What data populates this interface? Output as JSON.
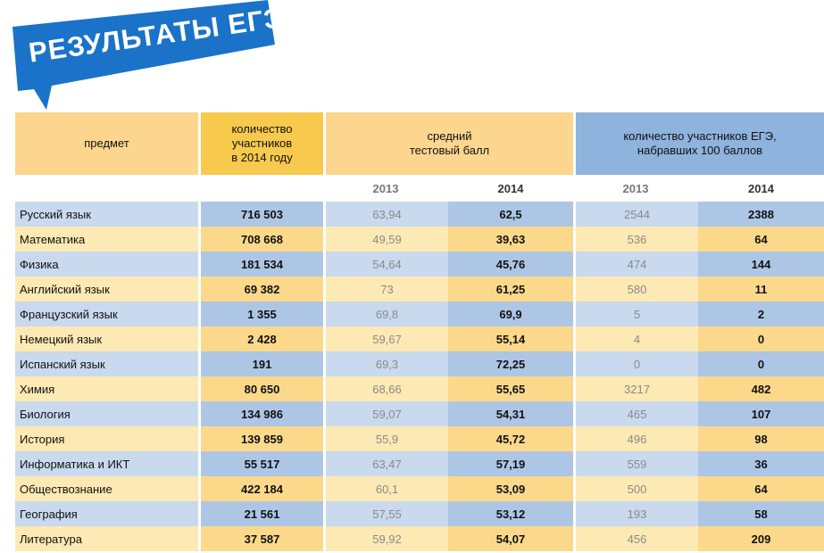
{
  "banner": {
    "title": "РЕЗУЛЬТАТЫ ЕГЭ",
    "color": "#1a73c9"
  },
  "header": {
    "subject": "предмет",
    "participants": [
      "количество",
      "участников",
      "в 2014 году"
    ],
    "avg_score": [
      "средний",
      "тестовый балл"
    ],
    "hundred": [
      "количество участников ЕГЭ,",
      "набравших 100 баллов"
    ]
  },
  "years": {
    "prev": "2013",
    "curr": "2014"
  },
  "rows": [
    {
      "subject": "Русский язык",
      "participants": "716 503",
      "avg_2013": "63,94",
      "avg_2014": "62,5",
      "h_2013": "2544",
      "h_2014": "2388"
    },
    {
      "subject": "Математика",
      "participants": "708 668",
      "avg_2013": "49,59",
      "avg_2014": "39,63",
      "h_2013": "536",
      "h_2014": "64"
    },
    {
      "subject": "Физика",
      "participants": "181 534",
      "avg_2013": "54,64",
      "avg_2014": "45,76",
      "h_2013": "474",
      "h_2014": "144"
    },
    {
      "subject": "Английский язык",
      "participants": "69 382",
      "avg_2013": "73",
      "avg_2014": "61,25",
      "h_2013": "580",
      "h_2014": "11"
    },
    {
      "subject": "Французский язык",
      "participants": "1 355",
      "avg_2013": "69,8",
      "avg_2014": "69,9",
      "h_2013": "5",
      "h_2014": "2"
    },
    {
      "subject": "Немецкий язык",
      "participants": "2 428",
      "avg_2013": "59,67",
      "avg_2014": "55,14",
      "h_2013": "4",
      "h_2014": "0"
    },
    {
      "subject": "Испанский язык",
      "participants": "191",
      "avg_2013": "69,3",
      "avg_2014": "72,25",
      "h_2013": "0",
      "h_2014": "0"
    },
    {
      "subject": "Химия",
      "participants": "80 650",
      "avg_2013": "68,66",
      "avg_2014": "55,65",
      "h_2013": "3217",
      "h_2014": "482"
    },
    {
      "subject": "Биология",
      "participants": "134 986",
      "avg_2013": "59,07",
      "avg_2014": "54,31",
      "h_2013": "465",
      "h_2014": "107"
    },
    {
      "subject": "История",
      "participants": "139 859",
      "avg_2013": "55,9",
      "avg_2014": "45,72",
      "h_2013": "496",
      "h_2014": "98"
    },
    {
      "subject": "Информатика и ИКТ",
      "participants": "55 517",
      "avg_2013": "63,47",
      "avg_2014": "57,19",
      "h_2013": "559",
      "h_2014": "36"
    },
    {
      "subject": "Обществознание",
      "participants": "422 184",
      "avg_2013": "60,1",
      "avg_2014": "53,09",
      "h_2013": "500",
      "h_2014": "64"
    },
    {
      "subject": "География",
      "participants": "21 561",
      "avg_2013": "57,55",
      "avg_2014": "53,12",
      "h_2013": "193",
      "h_2014": "58"
    },
    {
      "subject": "Литература",
      "participants": "37 587",
      "avg_2013": "59,92",
      "avg_2014": "54,07",
      "h_2013": "456",
      "h_2014": "209"
    }
  ]
}
